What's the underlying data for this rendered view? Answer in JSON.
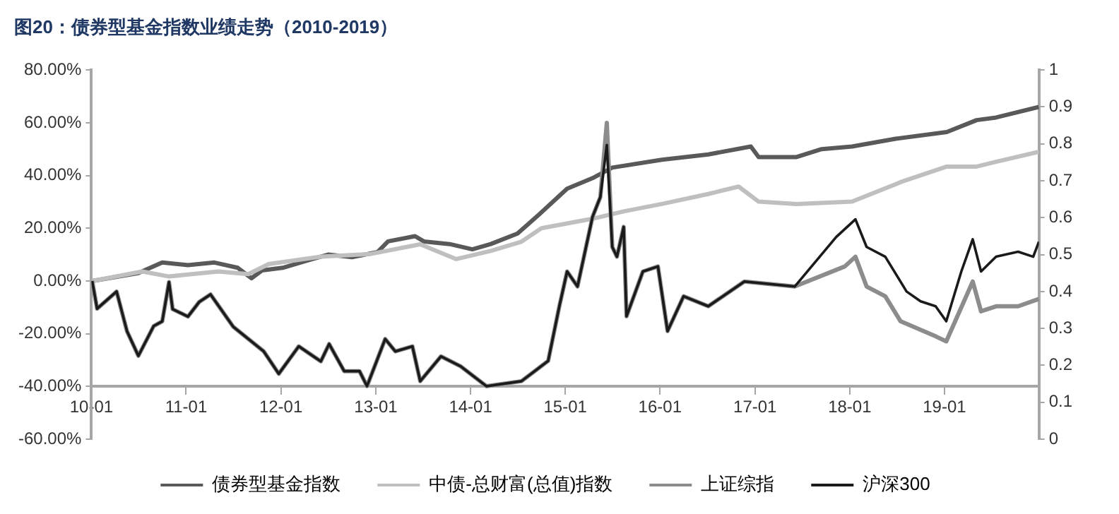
{
  "chart_data": {
    "type": "line",
    "title": "图20：债券型基金指数业绩走势（2010-2019）",
    "xlim": [
      "2010-01-01",
      "2019-12-31"
    ],
    "xticks": [
      {
        "value": "2010-01",
        "label": "10-01"
      },
      {
        "value": "2011-01",
        "label": "11-01"
      },
      {
        "value": "2012-01",
        "label": "12-01"
      },
      {
        "value": "2013-01",
        "label": "13-01"
      },
      {
        "value": "2014-01",
        "label": "14-01"
      },
      {
        "value": "2015-01",
        "label": "15-01"
      },
      {
        "value": "2016-01",
        "label": "16-01"
      },
      {
        "value": "2017-01",
        "label": "17-01"
      },
      {
        "value": "2018-01",
        "label": "18-01"
      },
      {
        "value": "2019-01",
        "label": "19-01"
      }
    ],
    "ylim": [
      -60,
      80
    ],
    "yticks": [
      {
        "value": -60,
        "label": "-60.00%"
      },
      {
        "value": -40,
        "label": "-40.00%"
      },
      {
        "value": -20,
        "label": "-20.00%"
      },
      {
        "value": 0,
        "label": "0.00%"
      },
      {
        "value": 20,
        "label": "20.00%"
      },
      {
        "value": 40,
        "label": "40.00%"
      },
      {
        "value": 60,
        "label": "60.00%"
      },
      {
        "value": 80,
        "label": "80.00%"
      }
    ],
    "y2lim": [
      0,
      1
    ],
    "y2ticks": [
      0,
      0.1,
      0.2,
      0.3,
      0.4,
      0.5,
      0.6,
      0.7,
      0.8,
      0.9,
      1
    ],
    "grid": false,
    "legend": "bottom",
    "marker": "none",
    "line_style": "solid",
    "series": [
      {
        "name": "债券型基金指数",
        "color": "#595959",
        "x": [
          "2010-01-04",
          "2010-07-01",
          "2010-10-01",
          "2011-01-08",
          "2011-04-20",
          "2011-07-19",
          "2011-09-10",
          "2011-10-20",
          "2012-01-08",
          "2012-04-20",
          "2012-07-01",
          "2012-10-01",
          "2013-01-08",
          "2013-02-17",
          "2013-06-01",
          "2013-07-05",
          "2013-10-12",
          "2014-01-08",
          "2014-03-20",
          "2014-07-01",
          "2014-10-01",
          "2015-01-08",
          "2015-04-16",
          "2015-07-01",
          "2016-01-08",
          "2016-07-05",
          "2016-12-16",
          "2017-01-15",
          "2017-06-10",
          "2017-09-15",
          "2018-01-10",
          "2018-07-01",
          "2019-01-10",
          "2019-05-05",
          "2019-07-19",
          "2019-12-31"
        ],
        "values": [
          0,
          3,
          7,
          6,
          7,
          5,
          1,
          4,
          5,
          8,
          10,
          9,
          11,
          15,
          17,
          15,
          14,
          12,
          14,
          18,
          26,
          35,
          39,
          43,
          46,
          48,
          51,
          47,
          47,
          50,
          51,
          54,
          56.5,
          61,
          62,
          66
        ]
      },
      {
        "name": "中债-总财富(总值)指数",
        "color": "#bfbfbf",
        "x": [
          "2010-01-04",
          "2010-07-16",
          "2010-10-27",
          "2011-05-05",
          "2011-08-29",
          "2011-11-15",
          "2012-06-03",
          "2012-12-09",
          "2013-06-21",
          "2013-11-07",
          "2014-03-20",
          "2014-07-16",
          "2014-10-01",
          "2015-04-16",
          "2015-08-14",
          "2016-01-08",
          "2016-07-05",
          "2016-10-30",
          "2017-01-15",
          "2017-06-10",
          "2018-01-10",
          "2018-07-22",
          "2019-01-10",
          "2019-05-05",
          "2019-07-19",
          "2019-12-31"
        ],
        "values": [
          0,
          3.6,
          1.7,
          3.6,
          2.6,
          6.4,
          9.2,
          10.2,
          13.9,
          8.3,
          11.4,
          14.9,
          20,
          23.6,
          26.4,
          29.2,
          33,
          35.8,
          30.1,
          29.2,
          30.1,
          37.7,
          43.4,
          43.4,
          45.2,
          49
        ]
      },
      {
        "name": "上证综指",
        "color": "#8c8c8c",
        "x": [
          "2010-01-04",
          "2010-01-23",
          "2010-04-08",
          "2010-05-18",
          "2010-07-01",
          "2010-08-29",
          "2010-10-01",
          "2010-10-27",
          "2010-11-10",
          "2011-01-08",
          "2011-02-21",
          "2011-04-05",
          "2011-07-01",
          "2011-10-27",
          "2011-12-24",
          "2012-03-10",
          "2012-06-03",
          "2012-07-05",
          "2012-09-01",
          "2012-10-30",
          "2012-11-28",
          "2013-02-06",
          "2013-03-17",
          "2013-05-22",
          "2013-06-21",
          "2013-09-09",
          "2013-11-24",
          "2014-03-03",
          "2014-07-16",
          "2014-10-27",
          "2014-12-09",
          "2015-01-08",
          "2015-02-17",
          "2015-04-16",
          "2015-05-16",
          "2015-06-10",
          "2015-07-01",
          "2015-07-19",
          "2015-08-14",
          "2015-08-25",
          "2015-10-27",
          "2015-12-24",
          "2016-01-30",
          "2016-04-01",
          "2016-07-05",
          "2016-11-21",
          "2017-06-03",
          "2017-12-13",
          "2018-01-23",
          "2018-03-07",
          "2018-05-18",
          "2018-07-16",
          "2018-11-28",
          "2019-01-08",
          "2019-04-20",
          "2019-05-22",
          "2019-07-19",
          "2019-10-12",
          "2019-12-31"
        ],
        "values": [
          0,
          -10.5,
          -4,
          -19,
          -28.4,
          -17.1,
          -15.3,
          -0.4,
          -10.7,
          -13.5,
          -7.9,
          -5.1,
          -17.3,
          -26.7,
          -35.2,
          -24.8,
          -30.5,
          -23.9,
          -34.2,
          -34.2,
          -39.9,
          -22,
          -26.7,
          -24.8,
          -38,
          -28.6,
          -32.4,
          -39.9,
          -38,
          -30.3,
          -9.6,
          3.6,
          -2.1,
          24.3,
          31.8,
          60,
          12.9,
          9.2,
          20.5,
          -13.4,
          3.6,
          5.5,
          -19,
          -5.8,
          -9.6,
          -0.2,
          -2.1,
          5.5,
          9.2,
          -2.1,
          -5.8,
          -15.3,
          -21,
          -22.9,
          -0.2,
          -11.5,
          -9.6,
          -9.6,
          -6.8
        ]
      },
      {
        "name": "沪深300",
        "color": "#1a1a1a",
        "x": [
          "2010-01-04",
          "2010-01-23",
          "2010-04-08",
          "2010-05-18",
          "2010-07-01",
          "2010-08-29",
          "2010-10-01",
          "2010-10-27",
          "2010-11-10",
          "2011-01-08",
          "2011-02-21",
          "2011-04-05",
          "2011-07-01",
          "2011-10-27",
          "2011-12-24",
          "2012-03-10",
          "2012-06-03",
          "2012-07-05",
          "2012-09-01",
          "2012-10-30",
          "2012-11-28",
          "2013-02-06",
          "2013-03-17",
          "2013-05-22",
          "2013-06-21",
          "2013-09-09",
          "2013-11-24",
          "2014-03-03",
          "2014-07-16",
          "2014-10-27",
          "2014-12-09",
          "2015-01-08",
          "2015-02-17",
          "2015-04-16",
          "2015-05-16",
          "2015-06-10",
          "2015-07-01",
          "2015-07-19",
          "2015-08-14",
          "2015-08-25",
          "2015-10-27",
          "2015-12-24",
          "2016-01-30",
          "2016-04-01",
          "2016-07-05",
          "2016-11-21",
          "2017-06-03",
          "2017-11-10",
          "2018-01-23",
          "2018-03-07",
          "2018-05-18",
          "2018-08-08",
          "2018-10-01",
          "2018-11-28",
          "2019-01-08",
          "2019-03-07",
          "2019-04-20",
          "2019-05-22",
          "2019-07-19",
          "2019-10-12",
          "2019-12-09",
          "2019-12-31"
        ],
        "values": [
          0,
          -10.5,
          -4,
          -19,
          -28.4,
          -17.1,
          -15.3,
          -0.4,
          -10.7,
          -13.5,
          -7.9,
          -5.1,
          -17.3,
          -26.7,
          -35.2,
          -24.8,
          -30.5,
          -23.9,
          -34.2,
          -34.2,
          -39.9,
          -22,
          -26.7,
          -24.8,
          -38,
          -28.6,
          -32.4,
          -39.9,
          -38,
          -30.3,
          -9.6,
          3.6,
          -2.1,
          24.3,
          31.8,
          51.6,
          12.9,
          9.2,
          20.5,
          -13.4,
          3.6,
          5.5,
          -19,
          -5.8,
          -9.6,
          -0.2,
          -2.1,
          16.7,
          23.4,
          12.9,
          9.2,
          -4,
          -7.7,
          -9.6,
          -15.3,
          3.6,
          15.8,
          3.6,
          9.2,
          11.1,
          9.2,
          14.9
        ]
      }
    ]
  }
}
